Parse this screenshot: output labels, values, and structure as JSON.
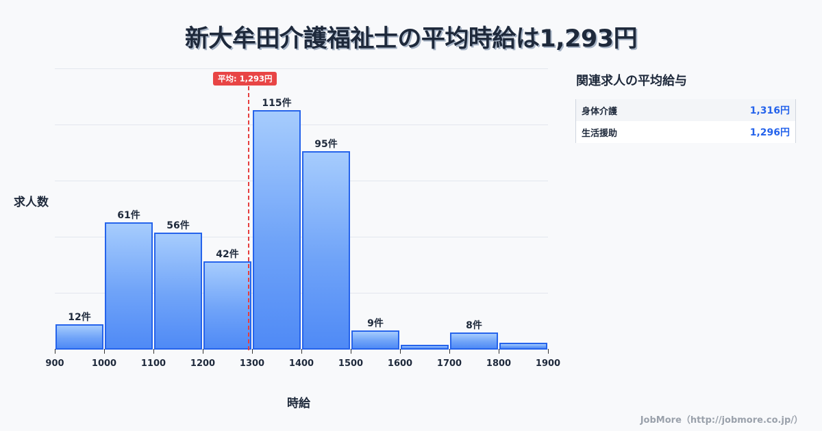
{
  "title": "新大牟田介護福祉士の平均時給は1,293円",
  "chart_data": {
    "type": "bar",
    "title": "新大牟田介護福祉士の平均時給は1,293円",
    "xlabel": "時給",
    "ylabel": "求人数",
    "bins": [
      {
        "from": 900,
        "to": 1000,
        "count": 12,
        "label": "12件"
      },
      {
        "from": 1000,
        "to": 1100,
        "count": 61,
        "label": "61件"
      },
      {
        "from": 1100,
        "to": 1200,
        "count": 56,
        "label": "56件"
      },
      {
        "from": 1200,
        "to": 1300,
        "count": 42,
        "label": "42件"
      },
      {
        "from": 1300,
        "to": 1400,
        "count": 115,
        "label": "115件"
      },
      {
        "from": 1400,
        "to": 1500,
        "count": 95,
        "label": "95件"
      },
      {
        "from": 1500,
        "to": 1600,
        "count": 9,
        "label": "9件"
      },
      {
        "from": 1600,
        "to": 1700,
        "count": 2,
        "label": ""
      },
      {
        "from": 1700,
        "to": 1800,
        "count": 8,
        "label": "8件"
      },
      {
        "from": 1800,
        "to": 1900,
        "count": 3,
        "label": ""
      }
    ],
    "categories": [
      "900-1000",
      "1000-1100",
      "1100-1200",
      "1200-1300",
      "1300-1400",
      "1400-1500",
      "1500-1600",
      "1600-1700",
      "1700-1800",
      "1800-1900"
    ],
    "values": [
      12,
      61,
      56,
      42,
      115,
      95,
      9,
      2,
      8,
      3
    ],
    "x_ticks": [
      "900",
      "1000",
      "1100",
      "1200",
      "1300",
      "1400",
      "1500",
      "1600",
      "1700",
      "1800",
      "1900"
    ],
    "xlim": [
      900,
      1900
    ],
    "ylim": [
      0,
      135
    ],
    "grid": true,
    "mean": {
      "value": 1293,
      "label": "平均: 1,293円",
      "color": "#e53e3e"
    },
    "bar_color": "#4f8af6",
    "bar_border_color": "#2563eb"
  },
  "sidebar": {
    "title": "関連求人の平均給与",
    "rows": [
      {
        "name": "身体介護",
        "value": "1,316円"
      },
      {
        "name": "生活援助",
        "value": "1,296円"
      }
    ]
  },
  "footer": "JobMore（http://jobmore.co.jp/）"
}
